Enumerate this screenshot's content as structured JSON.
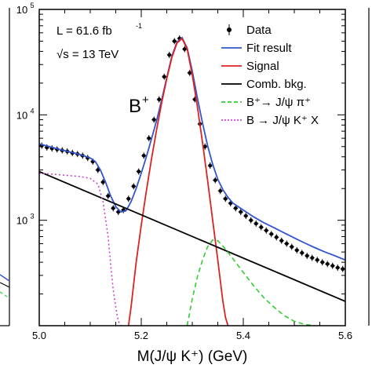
{
  "chart_data": {
    "type": "line",
    "xlabel": "M(J/ψ K⁺) (GeV)",
    "ylabel": "",
    "xlim": [
      5.0,
      5.6
    ],
    "ylim": [
      100,
      100000
    ],
    "yscale": "log",
    "x_ticks": [
      "5.0",
      "5.2",
      "5.4",
      "5.6"
    ],
    "y_ticks": [
      {
        "base": "10",
        "exp": "3"
      },
      {
        "base": "10",
        "exp": "4"
      },
      {
        "base": "10",
        "exp": "5"
      }
    ],
    "annotations": {
      "lumi": "L = 61.6 fb",
      "lumi_sup": "-1",
      "energy": "√s = 13 TeV",
      "particle": "B",
      "particle_sup": "+"
    },
    "legend": {
      "placement": "top-right",
      "entries": [
        {
          "label": "Data",
          "style": "points",
          "color": "#000000"
        },
        {
          "label": "Fit result",
          "style": "line",
          "color": "#3355cc"
        },
        {
          "label": "Signal",
          "style": "line",
          "color": "#dd2222"
        },
        {
          "label": "Comb. bkg.",
          "style": "line",
          "color": "#000000"
        },
        {
          "label": "B⁺→ J/ψ π⁺",
          "style": "dashed",
          "color": "#33cc33"
        },
        {
          "label": "B → J/ψ K⁺ X",
          "style": "dotted",
          "color": "#cc44cc"
        }
      ]
    },
    "series": [
      {
        "name": "Data",
        "type": "points",
        "x": [
          5.005,
          5.015,
          5.025,
          5.035,
          5.045,
          5.055,
          5.065,
          5.075,
          5.085,
          5.095,
          5.105,
          5.115,
          5.125,
          5.135,
          5.145,
          5.155,
          5.165,
          5.175,
          5.185,
          5.195,
          5.205,
          5.215,
          5.225,
          5.235,
          5.245,
          5.255,
          5.265,
          5.275,
          5.285,
          5.295,
          5.305,
          5.315,
          5.325,
          5.335,
          5.345,
          5.355,
          5.365,
          5.375,
          5.385,
          5.395,
          5.405,
          5.415,
          5.425,
          5.435,
          5.445,
          5.455,
          5.465,
          5.475,
          5.485,
          5.495,
          5.505,
          5.515,
          5.525,
          5.535,
          5.545,
          5.555,
          5.565,
          5.575,
          5.585,
          5.595
        ],
        "y": [
          5100,
          4900,
          4800,
          4700,
          4600,
          4500,
          4350,
          4250,
          4100,
          3900,
          3600,
          3000,
          2300,
          1700,
          1300,
          1200,
          1250,
          1600,
          2100,
          2900,
          4100,
          6000,
          9000,
          14000,
          23000,
          37000,
          50000,
          53000,
          42000,
          25000,
          14000,
          8200,
          5000,
          3300,
          2400,
          1900,
          1600,
          1450,
          1300,
          1200,
          1100,
          1000,
          930,
          860,
          800,
          740,
          690,
          640,
          600,
          560,
          520,
          490,
          460,
          440,
          420,
          400,
          385,
          370,
          355,
          345
        ]
      },
      {
        "name": "Fit result",
        "type": "line",
        "x": [
          5.0,
          5.02,
          5.04,
          5.06,
          5.08,
          5.1,
          5.11,
          5.12,
          5.13,
          5.14,
          5.15,
          5.16,
          5.17,
          5.18,
          5.19,
          5.2,
          5.21,
          5.22,
          5.23,
          5.24,
          5.25,
          5.26,
          5.27,
          5.28,
          5.29,
          5.3,
          5.31,
          5.32,
          5.33,
          5.34,
          5.35,
          5.36,
          5.37,
          5.38,
          5.4,
          5.42,
          5.44,
          5.46,
          5.48,
          5.5,
          5.52,
          5.54,
          5.56,
          5.58,
          5.6
        ],
        "y": [
          5300,
          5000,
          4700,
          4450,
          4200,
          3900,
          3600,
          3000,
          2300,
          1700,
          1350,
          1200,
          1230,
          1500,
          2000,
          2800,
          4000,
          5900,
          8800,
          13800,
          22500,
          36000,
          49000,
          54000,
          43000,
          26000,
          14500,
          8400,
          5100,
          3400,
          2450,
          1950,
          1650,
          1450,
          1250,
          1080,
          950,
          850,
          760,
          680,
          610,
          550,
          500,
          460,
          420
        ]
      },
      {
        "name": "Signal",
        "type": "line",
        "x": [
          5.175,
          5.18,
          5.19,
          5.2,
          5.21,
          5.22,
          5.23,
          5.24,
          5.25,
          5.26,
          5.27,
          5.28,
          5.29,
          5.3,
          5.31,
          5.32,
          5.33,
          5.34,
          5.35,
          5.36,
          5.365,
          5.37
        ],
        "y": [
          100,
          150,
          400,
          900,
          1900,
          3800,
          7200,
          13000,
          22000,
          35000,
          48000,
          53000,
          42000,
          24000,
          12000,
          5500,
          2400,
          1000,
          420,
          170,
          120,
          100
        ]
      },
      {
        "name": "Comb. bkg.",
        "type": "line",
        "x": [
          5.0,
          5.6
        ],
        "y": [
          2900,
          170
        ]
      },
      {
        "name": "B⁺→ J/ψ π⁺",
        "type": "dashed",
        "x": [
          5.29,
          5.3,
          5.31,
          5.32,
          5.33,
          5.34,
          5.35,
          5.36,
          5.38,
          5.4,
          5.42,
          5.44,
          5.46,
          5.48,
          5.5,
          5.52,
          5.54
        ],
        "y": [
          100,
          180,
          290,
          420,
          560,
          650,
          640,
          570,
          430,
          320,
          240,
          185,
          150,
          125,
          110,
          103,
          100
        ]
      },
      {
        "name": "B → J/ψ K⁺ X",
        "type": "dotted",
        "x": [
          5.0,
          5.04,
          5.08,
          5.1,
          5.115,
          5.125,
          5.135,
          5.14,
          5.145,
          5.15,
          5.155,
          5.16
        ],
        "y": [
          2800,
          2700,
          2600,
          2500,
          2200,
          1500,
          700,
          380,
          220,
          150,
          110,
          100
        ]
      }
    ]
  }
}
